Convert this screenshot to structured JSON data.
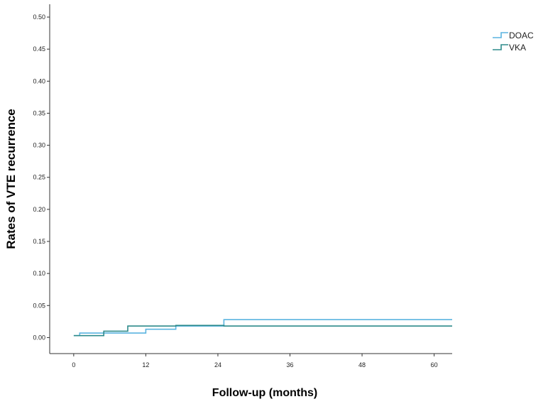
{
  "chart_data": {
    "type": "line",
    "step": true,
    "xlabel": "Follow-up (months)",
    "ylabel": "Rates of VTE recurrence",
    "xlim": [
      -4,
      63
    ],
    "ylim": [
      -0.025,
      0.52
    ],
    "xticks": [
      0,
      12,
      24,
      36,
      48,
      60
    ],
    "xtick_labels": [
      "0",
      "12",
      "24",
      "36",
      "48",
      "60"
    ],
    "yticks": [
      0.0,
      0.05,
      0.1,
      0.15,
      0.2,
      0.25,
      0.3,
      0.35,
      0.4,
      0.45,
      0.5
    ],
    "ytick_labels": [
      "0.00",
      "0.05",
      "0.10",
      "0.15",
      "0.20",
      "0.25",
      "0.30",
      "0.35",
      "0.40",
      "0.45",
      "0.50"
    ],
    "legend_position": "top-right",
    "grid": false,
    "series": [
      {
        "name": "DOAC",
        "color": "#5ab4e0",
        "x": [
          0,
          1,
          12,
          17,
          25,
          63
        ],
        "y": [
          0.003,
          0.007,
          0.013,
          0.018,
          0.028,
          0.028
        ]
      },
      {
        "name": "VKA",
        "color": "#2e8b8b",
        "x": [
          0,
          5,
          9,
          17,
          25,
          63
        ],
        "y": [
          0.003,
          0.01,
          0.018,
          0.019,
          0.018,
          0.018
        ]
      }
    ]
  }
}
